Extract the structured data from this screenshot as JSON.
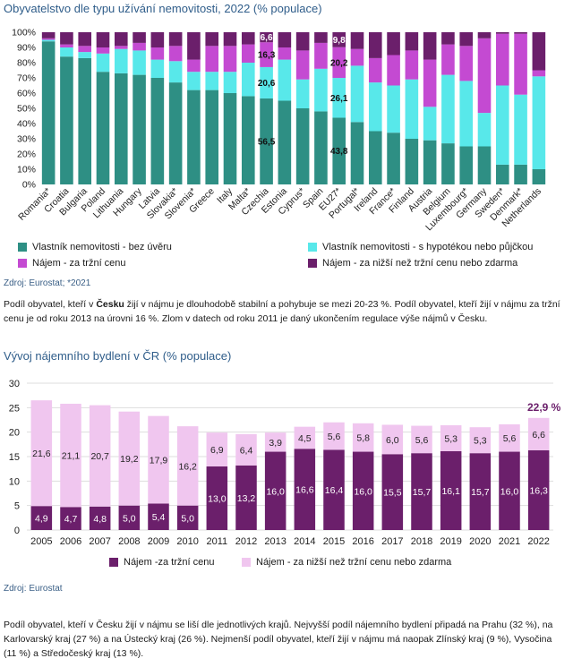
{
  "colors": {
    "owner_no_loan": "#2e8f84",
    "owner_mortgage": "#58e8ea",
    "rent_market": "#c44ad2",
    "rent_reduced": "#6b1f6b",
    "title": "#2f5d8a",
    "bar2_market": "#6b1f6b",
    "bar2_reduced": "#f0c6ef"
  },
  "chart1": {
    "title": "Obyvatelstvo dle typu užívání nemovitosti, 2022 (% populace)",
    "source": "Zdroj: Eurostat; *2021",
    "chart_data": {
      "type": "bar",
      "stacked": true,
      "categories": [
        "Romania*",
        "Croatia",
        "Bulgaria",
        "Poland",
        "Lithuania",
        "Hungary",
        "Latvia",
        "Slovakia*",
        "Slovenia*",
        "Greece",
        "Italy",
        "Malta*",
        "Czechia",
        "Estonia",
        "Cyprus*",
        "Spain",
        "EU27*",
        "Portugal*",
        "Ireland",
        "France*",
        "Finland",
        "Austria",
        "Belgium",
        "Luxembourg*",
        "Germany",
        "Sweden*",
        "Denmark*",
        "Netherlands"
      ],
      "series": [
        {
          "name": "Vlastník nemovitosti - bez úvěru",
          "values": [
            94,
            84,
            83,
            74,
            73,
            72,
            70,
            67,
            62,
            62,
            60,
            58,
            56.5,
            55,
            50,
            48,
            43.8,
            41,
            35,
            34,
            30,
            29,
            27,
            25,
            25,
            13,
            13,
            10
          ]
        },
        {
          "name": "Vlastník nemovitosti - s hypotékou nebo půjčkou",
          "values": [
            1,
            6,
            4,
            12,
            16,
            16,
            12,
            14,
            12,
            12,
            14,
            22,
            20.6,
            27,
            19,
            28,
            26.1,
            37,
            32,
            31,
            39,
            22,
            45,
            43,
            22,
            52,
            46,
            61
          ]
        },
        {
          "name": "Nájem - za tržní cenu",
          "values": [
            1,
            2,
            4,
            4,
            2,
            5,
            8,
            10,
            8,
            17,
            17,
            12,
            16.3,
            8,
            19,
            17,
            20.2,
            11,
            16,
            20,
            19,
            31,
            20,
            23,
            49,
            34,
            40,
            4
          ]
        },
        {
          "name": "Nájem - za nižší než tržní cenu nebo zdarma",
          "values": [
            4,
            8,
            9,
            10,
            9,
            7,
            10,
            9,
            18,
            9,
            9,
            8,
            6.6,
            10,
            12,
            7,
            9.8,
            11,
            17,
            15,
            12,
            18,
            8,
            9,
            4,
            1,
            1,
            25
          ]
        }
      ],
      "labels": [
        {
          "category": "Czechia",
          "values": [
            "56,5",
            "20,6",
            "16,3",
            "6,6"
          ]
        },
        {
          "category": "EU27*",
          "values": [
            "43,8",
            "26,1",
            "20,2",
            "9,8"
          ]
        }
      ],
      "yticks": [
        "0%",
        "10%",
        "20%",
        "30%",
        "40%",
        "50%",
        "60%",
        "70%",
        "80%",
        "90%",
        "100%"
      ],
      "ylim": [
        0,
        100
      ]
    },
    "legend": [
      "Vlastník nemovitosti - bez úvěru",
      "Vlastník nemovitosti - s hypotékou nebo půjčkou",
      "Nájem - za tržní cenu",
      "Nájem - za nižší než tržní cenu nebo zdarma"
    ]
  },
  "para1_a": "Podíl obyvatel, kteří v ",
  "para1_b": "Česku",
  "para1_c": " žijí v nájmu je dlouhodobě stabilní a pohybuje se mezi 20-23 %. Podíl obyvatel, kteří žijí v nájmu za tržní cenu je od roku 2013 na úrovni 16 %. Zlom v datech od roku 2011 je daný ukončením regulace výše nájmů v Česku.",
  "chart2": {
    "title": "Vývoj nájemního bydlení v ČR (% populace)",
    "source": "Zdroj: Eurostat",
    "chart_data": {
      "type": "bar",
      "stacked": true,
      "categories": [
        "2005",
        "2006",
        "2007",
        "2008",
        "2009",
        "2010",
        "2011",
        "2012",
        "2013",
        "2014",
        "2015",
        "2016",
        "2017",
        "2018",
        "2019",
        "2020",
        "2021",
        "2022"
      ],
      "series": [
        {
          "name": "Nájem -za tržní cenu",
          "values": [
            4.9,
            4.7,
            4.8,
            5.0,
            5.4,
            5.0,
            13.0,
            13.2,
            16.0,
            16.6,
            16.4,
            16.0,
            15.5,
            15.7,
            16.1,
            15.7,
            16.0,
            16.3
          ]
        },
        {
          "name": "Nájem - za nižší než tržní cenu nebo zdarma",
          "values": [
            21.6,
            21.1,
            20.7,
            19.2,
            17.9,
            16.2,
            6.9,
            6.4,
            3.9,
            4.5,
            5.6,
            5.8,
            6.0,
            5.6,
            5.3,
            5.3,
            5.6,
            6.6
          ]
        }
      ],
      "labels_market": [
        "4,9",
        "4,7",
        "4,8",
        "5,0",
        "5,4",
        "5,0",
        "13,0",
        "13,2",
        "16,0",
        "16,6",
        "16,4",
        "16,0",
        "15,5",
        "15,7",
        "16,1",
        "15,7",
        "16,0",
        "16,3"
      ],
      "labels_reduced": [
        "21,6",
        "21,1",
        "20,7",
        "19,2",
        "17,9",
        "16,2",
        "6,9",
        "6,4",
        "3,9",
        "4,5",
        "5,6",
        "5,8",
        "6,0",
        "5,6",
        "5,3",
        "5,3",
        "5,6",
        "6,6"
      ],
      "annotation": "22,9 %",
      "yticks": [
        "0",
        "5",
        "10",
        "15",
        "20",
        "25",
        "30"
      ],
      "ylim": [
        0,
        30
      ]
    },
    "legend": [
      "Nájem -za tržní cenu",
      "Nájem - za nižší než tržní cenu nebo zdarma"
    ]
  },
  "para2": "Podíl obyvatel, kteří v Česku žijí v nájmu se liší dle jednotlivých krajů. Nejvyšší podíl nájemního bydlení připadá na Prahu (32 %), na Karlovarský kraj (27 %) a na Ústecký kraj (26 %). Nejmenší podíl obyvatel, kteří žijí v nájmu má naopak Zlínský kraj (9 %), Vysočina (11 %) a Středočeský kraj (13 %)."
}
